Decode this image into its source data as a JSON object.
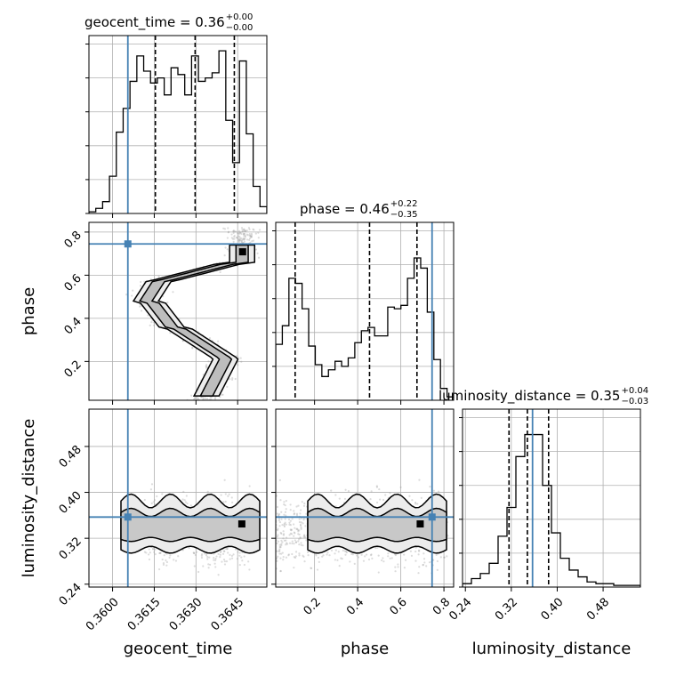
{
  "chart_data": {
    "type": "corner",
    "parameters": [
      "geocent_time",
      "phase",
      "luminosity_distance"
    ],
    "truth": {
      "geocent_time": 0.36055,
      "phase": 0.745,
      "luminosity_distance": 0.357
    },
    "colors": {
      "truth": "#4682b4",
      "hist": "#000000",
      "grid": "#b0b0b0",
      "points": "#9a9a9a"
    },
    "titles": [
      {
        "param": "geocent_time",
        "text": "geocent_time = 0.36",
        "plus": "+0.00",
        "minus": "−0.00"
      },
      {
        "param": "phase",
        "text": "phase = 0.46",
        "plus": "+0.22",
        "minus": "−0.35"
      },
      {
        "param": "luminosity_distance",
        "text": "luminosity_distance = 0.35",
        "plus": "+0.04",
        "minus": "−0.03"
      }
    ],
    "axes": {
      "geocent_time": {
        "range": [
          0.35915,
          0.36555
        ],
        "ticks": [
          0.36,
          0.3615,
          0.363,
          0.3645
        ],
        "tick_labels": [
          "0.3600",
          "0.3615",
          "0.3630",
          "0.3645"
        ],
        "label": "geocent_time"
      },
      "phase": {
        "range": [
          0.02,
          0.845
        ],
        "ticks": [
          0.2,
          0.4,
          0.6,
          0.8
        ],
        "tick_labels": [
          "0.2",
          "0.4",
          "0.6",
          "0.8"
        ],
        "label": "phase"
      },
      "luminosity_distance": {
        "range": [
          0.235,
          0.545
        ],
        "ticks": [
          0.24,
          0.32,
          0.4,
          0.48
        ],
        "tick_labels": [
          "0.24",
          "0.32",
          "0.40",
          "0.48"
        ],
        "label": "luminosity_distance"
      }
    },
    "histograms": {
      "geocent_time": {
        "edges_range": [
          0.35915,
          0.36555
        ],
        "counts": [
          0.01,
          0.03,
          0.07,
          0.22,
          0.48,
          0.62,
          0.78,
          0.93,
          0.84,
          0.77,
          0.8,
          0.7,
          0.86,
          0.82,
          0.7,
          0.93,
          0.78,
          0.8,
          0.83,
          0.96,
          0.55,
          0.3,
          0.9,
          0.47,
          0.16,
          0.04
        ]
      },
      "phase": {
        "edges_range": [
          0.02,
          0.845
        ],
        "counts": [
          0.33,
          0.44,
          0.72,
          0.69,
          0.54,
          0.32,
          0.21,
          0.14,
          0.18,
          0.23,
          0.2,
          0.25,
          0.34,
          0.41,
          0.43,
          0.38,
          0.38,
          0.55,
          0.54,
          0.56,
          0.72,
          0.84,
          0.78,
          0.52,
          0.24,
          0.07,
          0.02
        ]
      },
      "luminosity_distance": {
        "edges_range": [
          0.235,
          0.545
        ],
        "counts": [
          0.02,
          0.05,
          0.08,
          0.14,
          0.3,
          0.47,
          0.77,
          0.9,
          0.9,
          0.6,
          0.32,
          0.17,
          0.1,
          0.06,
          0.03,
          0.02,
          0.02,
          0.01,
          0.01,
          0.01
        ]
      }
    },
    "quantiles": {
      "geocent_time": [
        0.36154,
        0.36297,
        0.36438
      ],
      "phase": [
        0.11,
        0.455,
        0.675
      ],
      "luminosity_distance": [
        0.316,
        0.348,
        0.385
      ]
    },
    "hist_ylim": [
      0,
      1.05
    ],
    "grid": true
  }
}
